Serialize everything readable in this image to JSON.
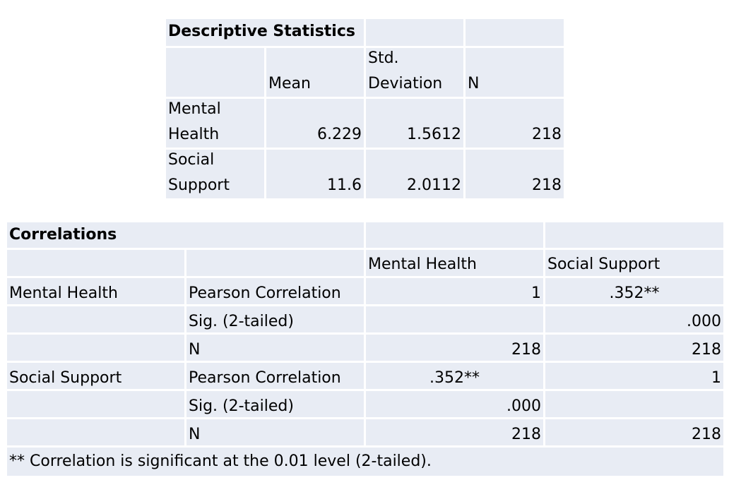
{
  "descriptive": {
    "title": "Descriptive Statistics",
    "headers": {
      "mean": "Mean",
      "std_line1": "Std.",
      "std_line2": "Deviation",
      "n": "N"
    },
    "rows": [
      {
        "label_line1": "Mental",
        "label_line2": "Health",
        "mean": "6.229",
        "std": "1.5612",
        "n": "218"
      },
      {
        "label_line1": "Social",
        "label_line2": "Support",
        "mean": "11.6",
        "std": "2.0112",
        "n": "218"
      }
    ]
  },
  "correlations": {
    "title": "Correlations",
    "col_headers": [
      "Mental Health",
      "Social Support"
    ],
    "rows": [
      {
        "var": "Mental Health",
        "stat": "Pearson Correlation",
        "mh": "1",
        "ss": ".352**"
      },
      {
        "var": "",
        "stat": "Sig. (2-tailed)",
        "mh": "",
        "ss": ".000"
      },
      {
        "var": "",
        "stat": "N",
        "mh": "218",
        "ss": "218"
      },
      {
        "var": "Social Support",
        "stat": "Pearson Correlation",
        "mh": ".352**",
        "ss": "1"
      },
      {
        "var": "",
        "stat": "Sig. (2-tailed)",
        "mh": ".000",
        "ss": ""
      },
      {
        "var": "",
        "stat": "N",
        "mh": "218",
        "ss": "218"
      }
    ],
    "footnote": "** Correlation is significant at the 0.01 level (2-tailed)."
  }
}
